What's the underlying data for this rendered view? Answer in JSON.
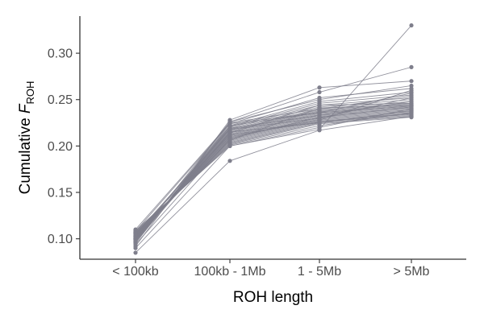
{
  "chart_data": {
    "type": "line",
    "x_categories": [
      "< 100kb",
      "100kb - 1Mb",
      "1 - 5Mb",
      "> 5Mb"
    ],
    "xlabel": "ROH length",
    "ylabel": {
      "prefix": "Cumulative ",
      "italic": "F",
      "subscript": "ROH"
    },
    "ylim": [
      0.078,
      0.34
    ],
    "y_ticks": [
      0.1,
      0.15,
      0.2,
      0.25,
      0.3
    ],
    "y_tick_labels": [
      "0.10",
      "0.15",
      "0.20",
      "0.25",
      "0.30"
    ],
    "grid": false,
    "legend": "none",
    "line_color": "#7f7f8c",
    "series": [
      {
        "values": [
          0.085,
          0.184,
          0.217,
          0.232
        ]
      },
      {
        "values": [
          0.09,
          0.2,
          0.218,
          0.33
        ]
      },
      {
        "values": [
          0.092,
          0.228,
          0.263,
          0.27
        ]
      },
      {
        "values": [
          0.095,
          0.226,
          0.258,
          0.285
        ]
      },
      {
        "values": [
          0.096,
          0.224,
          0.252,
          0.262
        ]
      },
      {
        "values": [
          0.097,
          0.222,
          0.248,
          0.258
        ]
      },
      {
        "values": [
          0.098,
          0.221,
          0.246,
          0.255
        ]
      },
      {
        "values": [
          0.098,
          0.22,
          0.244,
          0.252
        ]
      },
      {
        "values": [
          0.099,
          0.219,
          0.242,
          0.25
        ]
      },
      {
        "values": [
          0.099,
          0.218,
          0.24,
          0.248
        ]
      },
      {
        "values": [
          0.1,
          0.217,
          0.239,
          0.246
        ]
      },
      {
        "values": [
          0.1,
          0.216,
          0.238,
          0.245
        ]
      },
      {
        "values": [
          0.101,
          0.215,
          0.237,
          0.244
        ]
      },
      {
        "values": [
          0.101,
          0.214,
          0.236,
          0.243
        ]
      },
      {
        "values": [
          0.102,
          0.213,
          0.235,
          0.242
        ]
      },
      {
        "values": [
          0.102,
          0.212,
          0.234,
          0.241
        ]
      },
      {
        "values": [
          0.103,
          0.211,
          0.233,
          0.24
        ]
      },
      {
        "values": [
          0.103,
          0.21,
          0.232,
          0.239
        ]
      },
      {
        "values": [
          0.104,
          0.209,
          0.231,
          0.238
        ]
      },
      {
        "values": [
          0.104,
          0.208,
          0.23,
          0.237
        ]
      },
      {
        "values": [
          0.105,
          0.207,
          0.229,
          0.236
        ]
      },
      {
        "values": [
          0.105,
          0.206,
          0.228,
          0.235
        ]
      },
      {
        "values": [
          0.106,
          0.205,
          0.227,
          0.234
        ]
      },
      {
        "values": [
          0.106,
          0.204,
          0.226,
          0.233
        ]
      },
      {
        "values": [
          0.107,
          0.203,
          0.225,
          0.232
        ]
      },
      {
        "values": [
          0.107,
          0.202,
          0.224,
          0.231
        ]
      },
      {
        "values": [
          0.108,
          0.201,
          0.222,
          0.236
        ]
      },
      {
        "values": [
          0.109,
          0.2,
          0.22,
          0.24
        ]
      },
      {
        "values": [
          0.1,
          0.226,
          0.25,
          0.265
        ]
      },
      {
        "values": [
          0.102,
          0.222,
          0.236,
          0.257
        ]
      },
      {
        "values": [
          0.104,
          0.218,
          0.23,
          0.252
        ]
      },
      {
        "values": [
          0.099,
          0.214,
          0.244,
          0.246
        ]
      },
      {
        "values": [
          0.101,
          0.21,
          0.228,
          0.26
        ]
      },
      {
        "values": [
          0.103,
          0.206,
          0.241,
          0.244
        ]
      },
      {
        "values": [
          0.105,
          0.219,
          0.233,
          0.248
        ]
      },
      {
        "values": [
          0.097,
          0.215,
          0.225,
          0.238
        ]
      },
      {
        "values": [
          0.108,
          0.224,
          0.236,
          0.243
        ]
      },
      {
        "values": [
          0.106,
          0.212,
          0.226,
          0.235
        ]
      },
      {
        "values": [
          0.094,
          0.208,
          0.231,
          0.242
        ]
      },
      {
        "values": [
          0.11,
          0.225,
          0.24,
          0.254
        ]
      }
    ]
  }
}
